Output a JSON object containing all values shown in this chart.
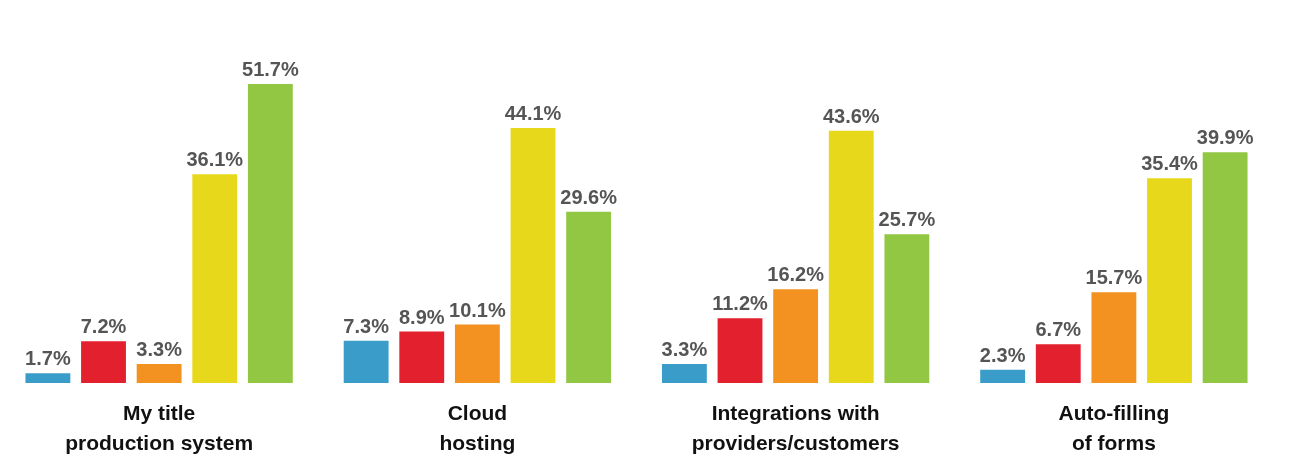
{
  "chart_data": {
    "type": "bar",
    "categories": [
      "My title\nproduction system",
      "Cloud\nhosting",
      "Integrations with\nproviders/customers",
      "Auto-filling\nof forms"
    ],
    "series": [
      {
        "color": "#3a9cc8",
        "values": [
          1.7,
          7.3,
          3.3,
          2.3
        ],
        "value_labels": [
          "1.7%",
          "7.3%",
          "3.3%",
          "2.3%"
        ]
      },
      {
        "color": "#e3202e",
        "values": [
          7.2,
          8.9,
          11.2,
          6.7
        ],
        "value_labels": [
          "7.2%",
          "8.9%",
          "11.2%",
          "6.7%"
        ]
      },
      {
        "color": "#f39221",
        "values": [
          3.3,
          10.1,
          16.2,
          15.7
        ],
        "value_labels": [
          "3.3%",
          "10.1%",
          "16.2%",
          "15.7%"
        ]
      },
      {
        "color": "#e8d81c",
        "values": [
          36.1,
          44.1,
          43.6,
          35.4
        ],
        "value_labels": [
          "36.1%",
          "44.1%",
          "43.6%",
          "35.4%"
        ]
      },
      {
        "color": "#92c744",
        "values": [
          51.7,
          29.6,
          25.7,
          39.9
        ],
        "value_labels": [
          "51.7%",
          "29.6%",
          "25.7%",
          "39.9%"
        ]
      }
    ],
    "grid": false
  }
}
